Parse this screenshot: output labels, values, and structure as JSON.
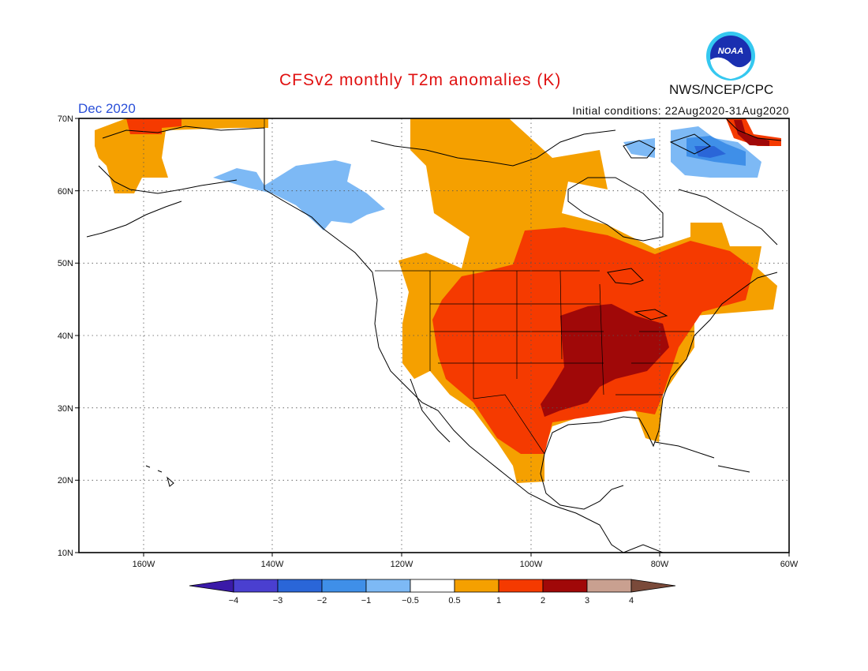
{
  "header": {
    "title": "CFSv2 monthly T2m anomalies (K)",
    "month": "Dec 2020",
    "initial_conditions": "Initial conditions: 22Aug2020-31Aug2020",
    "agency": "NWS/NCEP/CPC",
    "logo_text": "NOAA"
  },
  "axes": {
    "lat_labels": [
      "70N",
      "60N",
      "50N",
      "40N",
      "30N",
      "20N",
      "10N"
    ],
    "lon_labels": [
      "160W",
      "140W",
      "120W",
      "100W",
      "80W",
      "60W"
    ]
  },
  "colorbar": {
    "labels": [
      "−4",
      "−3",
      "−2",
      "−1",
      "−0.5",
      "0.5",
      "1",
      "2",
      "3",
      "4"
    ],
    "colors": [
      "#3a1aa8",
      "#4a3fd0",
      "#2a66d8",
      "#3f8fe8",
      "#7db9f5",
      "#ffffff",
      "#f5a000",
      "#f53a00",
      "#a00808",
      "#c9a090",
      "#7a4a3a"
    ]
  },
  "colors": {
    "title": "#e01010",
    "month": "#2a4fd8"
  }
}
